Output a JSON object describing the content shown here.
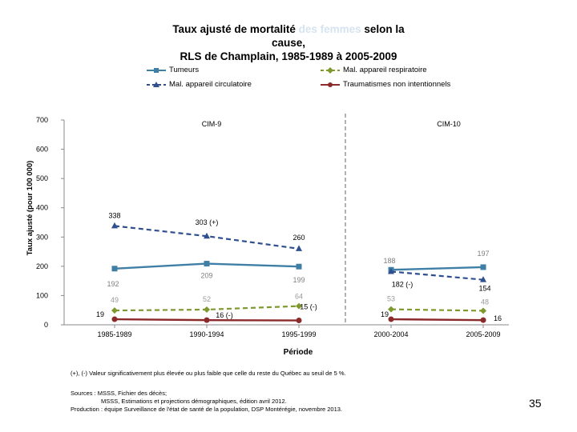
{
  "title": {
    "part1": "Taux ajusté de mortalité ",
    "faint": "des femmes",
    "part2": " selon la",
    "line2": "cause,",
    "line3": "RLS de Champlain, 1985-1989 à 2005-2009"
  },
  "notes": {
    "significance": "(+), (-) Valeur significativement plus élevée ou plus faible que celle du reste du Québec au seuil de 5 %.",
    "sources_line1": "Sources : MSSS, Fichier des décès;",
    "sources_line2": "MSSS, Estimations et projections démographiques, édition avril 2012.",
    "production": "Production : équipe Surveillance de l'état de santé de la population, DSP Montérégie, novembre 2013."
  },
  "page_number": "35",
  "colors": {
    "tumeurs": "#3f7fa6",
    "respiratoire": "#7e9a2e",
    "circulatoire": "#2f4f8f",
    "traumatismes": "#8b2a2a",
    "divider": "#7f7f7f"
  },
  "chart_data": {
    "type": "line",
    "xlabel": "Période",
    "ylabel": "Taux ajusté (pour 100 000)",
    "ylim": [
      0,
      700
    ],
    "yticks": [
      0,
      100,
      200,
      300,
      400,
      500,
      600,
      700
    ],
    "categories": [
      "1985-1989",
      "1990-1994",
      "1995-1999",
      "2000-2004",
      "2005-2009"
    ],
    "period_labels": [
      "CIM-9",
      "CIM-10"
    ],
    "legend_position": "top",
    "grid": false,
    "series": [
      {
        "name": "Tumeurs",
        "style": "solid",
        "marker": "square",
        "color": "#3f7fa6",
        "segments": [
          [
            0,
            1,
            2
          ],
          [
            3,
            4
          ]
        ],
        "values": [
          192,
          209,
          199,
          188,
          197
        ],
        "labels": [
          "192",
          "209",
          "199",
          "188",
          "197"
        ]
      },
      {
        "name": "Mal. appareil respiratoire",
        "style": "dashed",
        "marker": "diamond",
        "color": "#7e9a2e",
        "segments": [
          [
            0,
            1,
            2
          ],
          [
            3,
            4
          ]
        ],
        "values": [
          49,
          52,
          64,
          53,
          48
        ],
        "labels": [
          "49",
          "52",
          "64",
          "53",
          "48"
        ]
      },
      {
        "name": "Mal. appareil circulatoire",
        "style": "dashed",
        "marker": "triangle",
        "color": "#2f4f8f",
        "segments": [
          [
            0,
            1,
            2
          ],
          [
            3,
            4
          ]
        ],
        "values": [
          338,
          303,
          260,
          182,
          154
        ],
        "labels": [
          "338",
          "303 (+)",
          "260",
          "182 (-)",
          "154"
        ]
      },
      {
        "name": "Traumatismes non intentionnels",
        "style": "solid",
        "marker": "circle",
        "color": "#8b2a2a",
        "segments": [
          [
            0,
            1,
            2
          ],
          [
            3,
            4
          ]
        ],
        "values": [
          19,
          16,
          15,
          19,
          16
        ],
        "labels": [
          "19",
          "16 (-)",
          "15 (-)",
          "19",
          "16"
        ]
      }
    ]
  }
}
